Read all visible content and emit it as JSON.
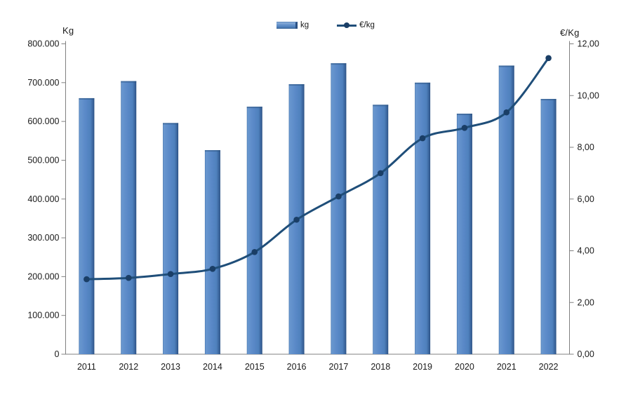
{
  "page": {
    "background": "#ffffff"
  },
  "chart_data": {
    "type": "combo",
    "title": "",
    "categories": [
      "2011",
      "2012",
      "2013",
      "2014",
      "2015",
      "2016",
      "2017",
      "2018",
      "2019",
      "2020",
      "2021",
      "2022"
    ],
    "series": [
      {
        "name": "kg",
        "type": "bar",
        "axis": "left",
        "color": "#4f81bd",
        "values": [
          660000,
          704000,
          596000,
          526000,
          638000,
          696000,
          750000,
          643000,
          700000,
          620000,
          744000,
          658000
        ]
      },
      {
        "name": "€/kg",
        "type": "line",
        "axis": "right",
        "color": "#1f4e79",
        "values": [
          2.9,
          2.95,
          3.1,
          3.3,
          3.95,
          5.2,
          6.1,
          7.0,
          8.35,
          8.75,
          9.35,
          11.45
        ]
      }
    ],
    "left_axis": {
      "title": "Kg",
      "min": 0,
      "max": 800000,
      "step": 100000,
      "tick_labels": [
        "0",
        "100.000",
        "200.000",
        "300.000",
        "400.000",
        "500.000",
        "600.000",
        "700.000",
        "800.000"
      ]
    },
    "right_axis": {
      "title": "€/Kg",
      "min": 0,
      "max": 12,
      "step": 2,
      "tick_labels": [
        "0,00",
        "2,00",
        "4,00",
        "6,00",
        "8,00",
        "10,00",
        "12,00"
      ]
    },
    "legend": {
      "position": "top",
      "entries": [
        "kg",
        "€/kg"
      ]
    },
    "grid": false,
    "background": "#ffffff"
  },
  "colors": {
    "bar_fill": "#4f81bd",
    "bar_edge": "#2a5083",
    "line": "#1f4e79",
    "marker": "#1a3e66",
    "axis": "#808080",
    "text": "#1a1a1a"
  }
}
